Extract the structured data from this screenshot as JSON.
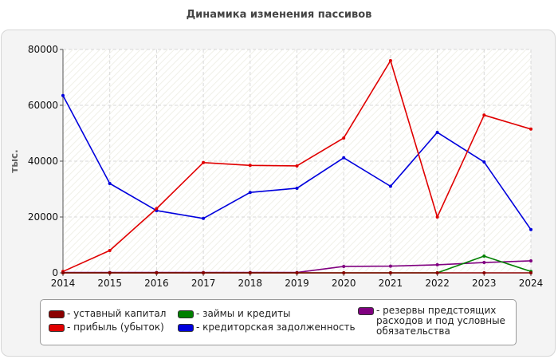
{
  "chart_data": {
    "type": "line",
    "title": "Динамика изменения пассивов",
    "xlabel": "",
    "ylabel": "тыс.",
    "x": [
      "2014",
      "2015",
      "2016",
      "2017",
      "2018",
      "2019",
      "2020",
      "2021",
      "2022",
      "2023",
      "2024"
    ],
    "ylim": [
      0,
      80000
    ],
    "yticks": [
      "0",
      "20000",
      "40000",
      "60000",
      "80000"
    ],
    "grid": true,
    "legend_position": "bottom",
    "series": [
      {
        "name": "- уставный капитал",
        "color": "#8b0000",
        "values": [
          0,
          0,
          0,
          0,
          0,
          0,
          0,
          0,
          0,
          0,
          0
        ]
      },
      {
        "name": "- прибыль (убыток)",
        "color": "#e00000",
        "values": [
          500,
          8000,
          23000,
          39500,
          38500,
          38300,
          48300,
          76000,
          20000,
          56500,
          51500
        ]
      },
      {
        "name": "- займы и кредиты",
        "color": "#008000",
        "values": [
          0,
          0,
          0,
          0,
          0,
          0,
          0,
          0,
          0,
          6000,
          500
        ]
      },
      {
        "name": "- кредиторская задолженность",
        "color": "#0000dd",
        "values": [
          63500,
          32000,
          22300,
          19500,
          28800,
          30300,
          41200,
          31000,
          50300,
          39700,
          15500
        ]
      },
      {
        "name": "- резервы предстоящих\nрасходов и под условные\nобязательства",
        "color": "#800080",
        "values": [
          100,
          100,
          100,
          100,
          100,
          100,
          2300,
          2400,
          2900,
          3700,
          4300
        ]
      }
    ]
  }
}
